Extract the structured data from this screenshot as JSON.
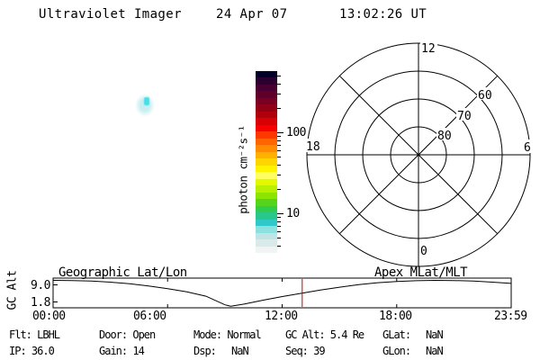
{
  "header": {
    "title": "Ultraviolet Imager",
    "date": "24 Apr 07",
    "time": "13:02:26 UT"
  },
  "uv_panel": {
    "halo_color": "#c7eef0",
    "core_color": "#45dfe8"
  },
  "status": {
    "r1c1": "Flt: LBHL",
    "r1c2": "Door: Open",
    "r1c3": "Mode: Normal",
    "r1c4": "GC Alt: 5.4 Re",
    "r1c5": "GLat:",
    "r1c6": "NaN",
    "r2c1": "IP: 36.0",
    "r2c2": "Gain: 14",
    "r2c3": "Dsp:",
    "r2c4": "NaN",
    "r2c5": "Seq: 39",
    "r2c6": "GLon:",
    "r2c7": "NaN"
  },
  "chart_data": [
    {
      "type": "polar",
      "title": "Apex MLat/MLT",
      "angular_labels": {
        "top": "12",
        "left": "18",
        "right": "6",
        "bottom": "0"
      },
      "radial_circles_mlat": [
        80,
        70,
        60,
        50
      ],
      "radial_labels": [
        "80",
        "70",
        "60"
      ],
      "spoke_interval_deg": 45,
      "grid_color": "#000000",
      "notes": "magnetic local time dial, no auroral data plotted"
    },
    {
      "type": "line",
      "title": "GC Alt",
      "ylabel": "GC Alt",
      "ytick_labels": [
        "9.0",
        "1.8"
      ],
      "yticks": [
        9.0,
        1.8
      ],
      "xtick_labels": [
        "00:00",
        "06:00",
        "12:00",
        "18:00",
        "23:59"
      ],
      "left_annotation": "Geographic Lat/Lon",
      "right_annotation": "Apex MLat/MLT",
      "x_hours": [
        0,
        1,
        2,
        3,
        4,
        5,
        6,
        7,
        8,
        9,
        9.3,
        10,
        11,
        12,
        13,
        14,
        15,
        16,
        17,
        18,
        19,
        20,
        21,
        22,
        23,
        23.98
      ],
      "values": [
        9.0,
        8.95,
        8.8,
        8.5,
        8.05,
        7.45,
        6.7,
        5.8,
        4.6,
        2.2,
        1.8,
        2.4,
        3.5,
        4.5,
        5.4,
        6.3,
        7.1,
        7.8,
        8.35,
        8.7,
        8.9,
        9.0,
        8.95,
        8.8,
        8.5,
        8.15
      ],
      "marker_hour": 13.04,
      "marker_time": "13:02:26",
      "marker_color": "#cc0000",
      "ylim": [
        1.8,
        9.0
      ],
      "line_color": "#000000"
    },
    {
      "type": "colorbar",
      "label": "photon cm⁻²s⁻¹",
      "scale": "log",
      "tick_labels": [
        "100",
        "10"
      ],
      "ticks": [
        100,
        10
      ],
      "minor_ticks": [
        500,
        400,
        300,
        200,
        90,
        80,
        70,
        60,
        50,
        40,
        30,
        20,
        9,
        8,
        7,
        6,
        5,
        4
      ],
      "range_approx": [
        3.3,
        570
      ],
      "colors": [
        "#000028",
        "#2a0030",
        "#480030",
        "#60002a",
        "#780022",
        "#920018",
        "#b0000c",
        "#d80004",
        "#f80000",
        "#ff3800",
        "#ff6400",
        "#ff8c00",
        "#ffb000",
        "#ffd400",
        "#fff400",
        "#ffff60",
        "#e4f800",
        "#b8f000",
        "#8ce400",
        "#54d41c",
        "#30cc4c",
        "#28c88c",
        "#30c8c8",
        "#8ce0e0",
        "#c0e4e4",
        "#d8eaea",
        "#f0f4f4"
      ]
    }
  ]
}
